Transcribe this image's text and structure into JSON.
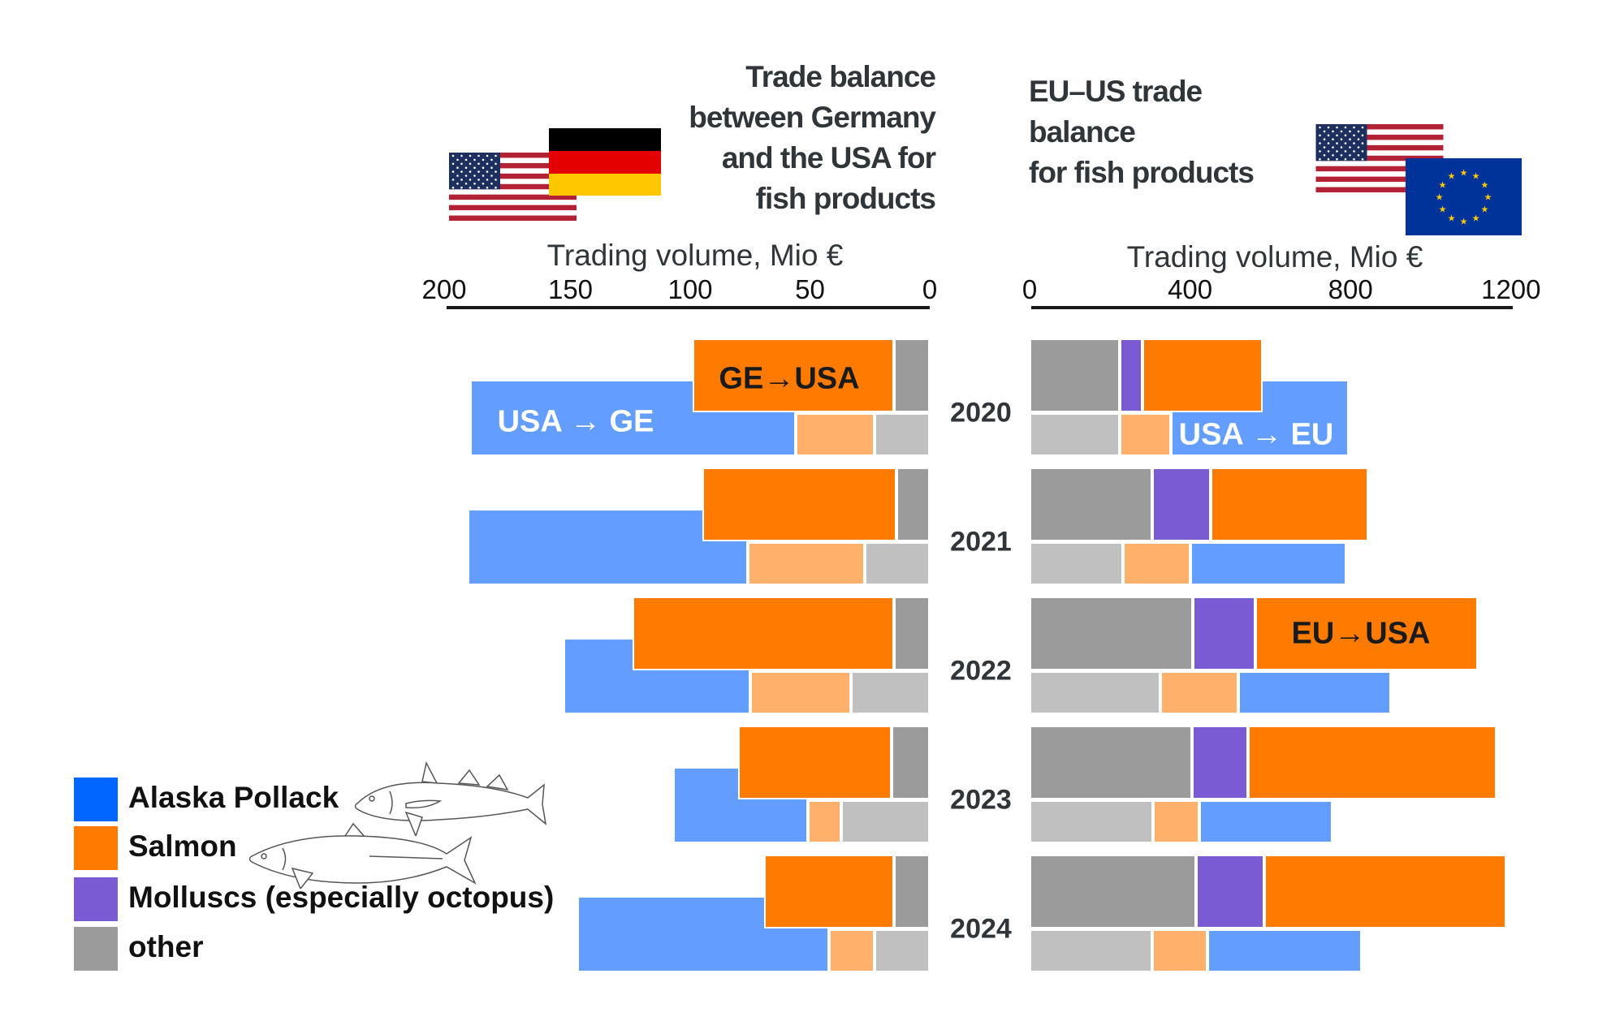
{
  "colors": {
    "alaska_pollack": "#0066ff",
    "alaska_pollack_bar": "#639efe",
    "salmon": "#ff7b00",
    "salmon_light": "#ffb06a",
    "molluscs": "#7b5bd4",
    "other": "#9b9b9b",
    "other_light": "#c0c0c0"
  },
  "legend": [
    {
      "key": "alaska_pollack",
      "label": "Alaska Pollack"
    },
    {
      "key": "salmon",
      "label": "Salmon"
    },
    {
      "key": "molluscs",
      "label": "Molluscs (especially octopus)"
    },
    {
      "key": "other",
      "label": "other"
    }
  ],
  "icons": [
    "us-flag-icon",
    "germany-flag-icon",
    "eu-flag-icon",
    "pollack-fish-icon",
    "salmon-fish-icon"
  ],
  "chart_data": [
    {
      "type": "bar",
      "orientation": "horizontal",
      "stacked": true,
      "direction": "right-to-left",
      "title": "Trade balance between Germany and the USA for fish products",
      "title_lines": [
        "Trade balance",
        "between Germany",
        "and the USA for",
        "fish products"
      ],
      "xlabel": "Trading volume, Mio €",
      "xlim": [
        200,
        0
      ],
      "xticks": [
        "200",
        "150",
        "100",
        "50",
        "0"
      ],
      "categories": [
        "2020",
        "2021",
        "2022",
        "2023",
        "2024"
      ],
      "series_groups": [
        {
          "label": "GE→USA",
          "series": [
            {
              "key": "other",
              "values": [
                15,
                14,
                15,
                16,
                15
              ]
            },
            {
              "key": "salmon",
              "values": [
                84,
                81,
                109,
                64,
                54
              ]
            }
          ]
        },
        {
          "label": "USA → GE",
          "series": [
            {
              "key": "other",
              "values": [
                23,
                27,
                33,
                37,
                23
              ]
            },
            {
              "key": "salmon",
              "values": [
                33,
                49,
                42,
                14,
                19
              ]
            },
            {
              "key": "alaska_pollack",
              "values": [
                136,
                117,
                78,
                56,
                105
              ]
            }
          ]
        }
      ]
    },
    {
      "type": "bar",
      "orientation": "horizontal",
      "stacked": true,
      "direction": "left-to-right",
      "title": "EU–US trade balance for fish products",
      "title_lines": [
        "EU–US trade",
        "balance",
        "for fish products"
      ],
      "xlabel": "Trading volume, Mio €",
      "xlim": [
        0,
        1200
      ],
      "xticks": [
        "0",
        "400",
        "800",
        "1200"
      ],
      "categories": [
        "2020",
        "2021",
        "2022",
        "2023",
        "2024"
      ],
      "series_groups": [
        {
          "label": "EU→USA",
          "series": [
            {
              "key": "other",
              "values": [
                225,
                305,
                407,
                405,
                415
              ]
            },
            {
              "key": "molluscs",
              "values": [
                57,
                146,
                155,
                140,
                170
              ]
            },
            {
              "key": "salmon",
              "values": [
                300,
                394,
                555,
                620,
                604
              ]
            }
          ]
        },
        {
          "label": "USA → EU",
          "series": [
            {
              "key": "other",
              "values": [
                225,
                233,
                325,
                308,
                305
              ]
            },
            {
              "key": "salmon",
              "values": [
                128,
                167,
                195,
                115,
                139
              ]
            },
            {
              "key": "alaska_pollack",
              "values": [
                442,
                390,
                381,
                333,
                383
              ]
            }
          ]
        }
      ]
    }
  ]
}
